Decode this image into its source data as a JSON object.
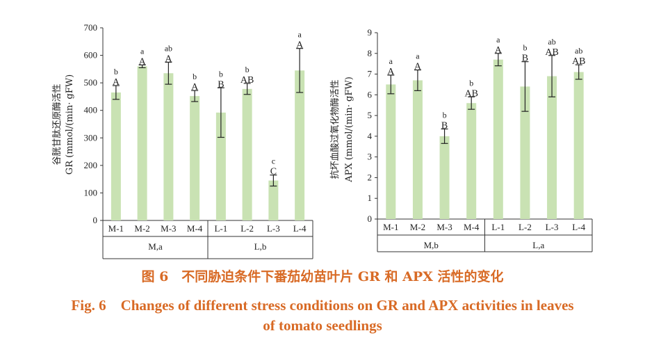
{
  "chart_data": [
    {
      "type": "bar",
      "ylabel_cn": "谷胱甘肽还原酶活性",
      "ylabel": "GR (mmol/(min· gFW)",
      "ylim": [
        0,
        700
      ],
      "yticks": [
        "0",
        "100",
        "200",
        "300",
        "400",
        "500",
        "600",
        "700"
      ],
      "categories": [
        "M-1",
        "M-2",
        "M-3",
        "M-4",
        "L-1",
        "L-2",
        "L-3",
        "L-4"
      ],
      "values": [
        465,
        560,
        535,
        452,
        392,
        478,
        145,
        545
      ],
      "errors": [
        25,
        5,
        40,
        20,
        90,
        20,
        20,
        80
      ],
      "sig_upper": [
        "b",
        "a",
        "ab",
        "b",
        "b",
        "b",
        "c",
        "a"
      ],
      "sig_lower": [
        "A",
        "A",
        "A",
        "A",
        "B",
        "AB",
        "C",
        "A"
      ],
      "groups": [
        {
          "label": "M,a",
          "span": [
            0,
            3
          ]
        },
        {
          "label": "L,b",
          "span": [
            4,
            7
          ]
        }
      ],
      "bar_color": "#c9e2b3"
    },
    {
      "type": "bar",
      "ylabel_cn": "抗坏血酸过氧化物酶活性",
      "ylabel": "APX (mmol/(min· gFW)",
      "ylim": [
        0,
        9
      ],
      "yticks": [
        "0",
        "1",
        "2",
        "3",
        "4",
        "5",
        "6",
        "7",
        "8",
        "9"
      ],
      "categories": [
        "M-1",
        "M-2",
        "M-3",
        "M-4",
        "L-1",
        "L-2",
        "L-3",
        "L-4"
      ],
      "values": [
        6.5,
        6.7,
        4.0,
        5.6,
        7.7,
        6.4,
        6.9,
        7.1
      ],
      "errors": [
        0.45,
        0.5,
        0.35,
        0.3,
        0.3,
        1.2,
        1.0,
        0.35
      ],
      "sig_upper": [
        "a",
        "a",
        "b",
        "b",
        "a",
        "b",
        "ab",
        "ab"
      ],
      "sig_lower": [
        "A",
        "A",
        "B",
        "AB",
        "A",
        "B",
        "AB",
        "AB"
      ],
      "groups": [
        {
          "label": "M,b",
          "span": [
            0,
            3
          ]
        },
        {
          "label": "L,a",
          "span": [
            4,
            7
          ]
        }
      ],
      "bar_color": "#c9e2b3"
    }
  ],
  "caption": {
    "cn": "图 6　不同胁迫条件下番茄幼苗叶片 GR 和 APX 活性的变化",
    "en_line1": "Fig. 6　Changes of different stress conditions on GR and APX activities in leaves",
    "en_line2": "of tomato seedlings",
    "color": "#d86a25"
  }
}
